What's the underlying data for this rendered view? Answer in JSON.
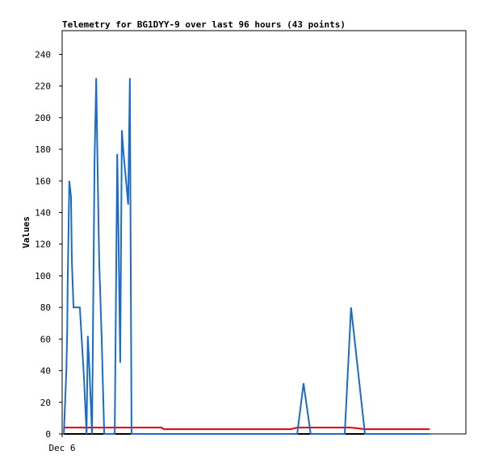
{
  "chart_data": {
    "type": "line",
    "title": "Telemetry for BG1DYY-9 over last 96 hours (43 points)",
    "y_label": "Values",
    "x": [
      0.4,
      1.0,
      1.2,
      1.3,
      1.7,
      2.1,
      2.3,
      2.7,
      4.2,
      4.6,
      5.2,
      5.8,
      6.1,
      6.5,
      7.1,
      7.7,
      8.1,
      8.4,
      8.8,
      9.4,
      10.0,
      12.5,
      13.1,
      13.4,
      13.8,
      14.2,
      14.6,
      15.2,
      15.7,
      16.1,
      16.5,
      23.6,
      24.2,
      54.3,
      55.9,
      57.4,
      59.1,
      67.2,
      68.7,
      72.0,
      75.5,
      81.2,
      87.4
    ],
    "xlim": [
      0,
      96
    ],
    "xticks": [
      {
        "value": 0,
        "label": "Dec 6"
      }
    ],
    "ylim": [
      0,
      255
    ],
    "yticks": [
      0,
      20,
      40,
      60,
      80,
      100,
      120,
      140,
      160,
      180,
      200,
      220,
      240
    ],
    "series": [
      {
        "color": "#000000",
        "values": [
          0,
          0,
          0,
          0,
          0,
          0,
          0,
          0,
          0,
          0,
          0,
          0,
          0,
          0,
          0,
          0,
          0,
          0,
          0,
          0,
          0,
          0,
          0,
          0,
          0,
          0,
          0,
          0,
          0,
          0,
          0,
          0,
          0,
          0,
          0,
          0,
          0,
          0,
          0,
          0,
          0,
          0,
          0
        ]
      },
      {
        "color": "#e00000",
        "values": [
          4,
          4,
          4,
          4,
          4,
          4,
          4,
          4,
          4,
          4,
          4,
          4,
          4,
          4,
          4,
          4,
          4,
          4,
          4,
          4,
          4,
          4,
          4,
          4,
          4,
          4,
          4,
          4,
          4,
          4,
          4,
          4,
          3,
          3,
          4,
          4,
          4,
          4,
          4,
          3,
          3,
          3,
          3
        ]
      },
      {
        "color": "#1a6cc8",
        "values": [
          0,
          40,
          65,
          93,
          160,
          150,
          110,
          80,
          80,
          62,
          35,
          0,
          62,
          40,
          0,
          172,
          225,
          172,
          110,
          60,
          0,
          0,
          177,
          125,
          45,
          192,
          177,
          160,
          145,
          225,
          0,
          0,
          0,
          0,
          0,
          32,
          0,
          0,
          80,
          0,
          0,
          0,
          0
        ]
      }
    ]
  }
}
